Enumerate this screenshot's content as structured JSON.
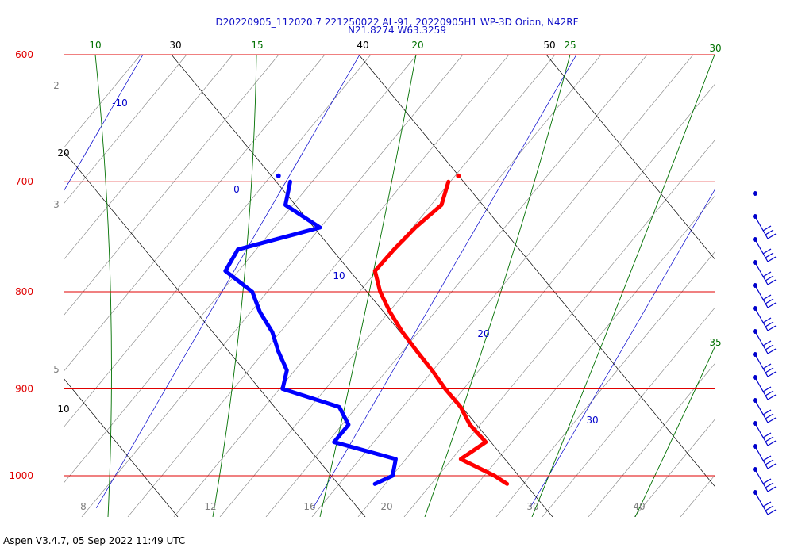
{
  "header": {
    "line1": "D20220905_112020.7 221250022 AL-91, 20220905H1 WP-3D Orion, N42RF",
    "line2": "N21.8274 W63.3259"
  },
  "footer": {
    "text": "Aspen V3.4.7, 05 Sep 2022  11:49 UTC"
  },
  "colors": {
    "isobar": "#e00000",
    "temperature": "#ff0000",
    "dewpoint": "#0000ff",
    "isotherm": "#0000cc",
    "dry_adiabat": "#000000",
    "moist_adiabat": "#007000",
    "mixing_ratio": "#808080",
    "wind": "#0000cc"
  },
  "chart_data": {
    "type": "skew-t",
    "pressure_labels": [
      "600",
      "700",
      "800",
      "900",
      "1000"
    ],
    "pressure_levels": [
      600,
      700,
      800,
      900,
      1000
    ],
    "isotherm_labels": [
      "-10",
      "0",
      "10",
      "20",
      "30"
    ],
    "dry_adiabat_labels": [
      "30",
      "40",
      "50",
      "20",
      "10"
    ],
    "moist_adiabat_labels": [
      "10",
      "15",
      "20",
      "25",
      "30",
      "35"
    ],
    "mixing_ratio_labels": [
      "2",
      "3",
      "5",
      "8",
      "12",
      "16",
      "20",
      "30",
      "40"
    ],
    "temperature_profile": [
      {
        "p": 700,
        "t": 7.5
      },
      {
        "p": 720,
        "t": 7.8
      },
      {
        "p": 740,
        "t": 7.2
      },
      {
        "p": 760,
        "t": 6.8
      },
      {
        "p": 780,
        "t": 6.5
      },
      {
        "p": 800,
        "t": 7.3
      },
      {
        "p": 820,
        "t": 8.3
      },
      {
        "p": 840,
        "t": 9.4
      },
      {
        "p": 860,
        "t": 10.6
      },
      {
        "p": 880,
        "t": 11.8
      },
      {
        "p": 900,
        "t": 12.9
      },
      {
        "p": 920,
        "t": 14.1
      },
      {
        "p": 940,
        "t": 15.0
      },
      {
        "p": 960,
        "t": 16.2
      },
      {
        "p": 980,
        "t": 15.5
      },
      {
        "p": 1000,
        "t": 17.5
      },
      {
        "p": 1010,
        "t": 18.3
      }
    ],
    "dewpoint_profile": [
      {
        "p": 700,
        "td": 0.2
      },
      {
        "p": 720,
        "td": 0.6
      },
      {
        "p": 740,
        "td": 2.8
      },
      {
        "p": 760,
        "td": -0.4
      },
      {
        "p": 780,
        "td": -0.4
      },
      {
        "p": 800,
        "td": 1.4
      },
      {
        "p": 820,
        "td": 2.3
      },
      {
        "p": 840,
        "td": 3.4
      },
      {
        "p": 860,
        "td": 4.2
      },
      {
        "p": 880,
        "td": 5.1
      },
      {
        "p": 900,
        "td": 5.4
      },
      {
        "p": 920,
        "td": 8.5
      },
      {
        "p": 940,
        "td": 9.4
      },
      {
        "p": 960,
        "td": 9.2
      },
      {
        "p": 980,
        "td": 12.5
      },
      {
        "p": 1000,
        "td": 12.8
      },
      {
        "p": 1010,
        "td": 12.2
      }
    ],
    "launch_temperature": {
      "p": 695,
      "t": 7.8
    },
    "launch_dewpoint": {
      "p": 695,
      "td": -0.5
    },
    "wind_barbs_count": 14
  }
}
